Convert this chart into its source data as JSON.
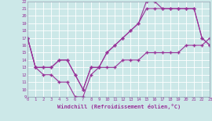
{
  "xlabel": "Windchill (Refroidissement éolien,°C)",
  "bg_color": "#cce8e8",
  "line_color": "#993399",
  "grid_color": "#aacccc",
  "xmin": 0,
  "xmax": 23,
  "ymin": 9,
  "ymax": 22,
  "line1_x": [
    0,
    1,
    2,
    3,
    4,
    5,
    6,
    7,
    8,
    9,
    10,
    11,
    12,
    13,
    14,
    15,
    16,
    17,
    18,
    19,
    20,
    21,
    22,
    23
  ],
  "line1_y": [
    17,
    13,
    13,
    13,
    14,
    14,
    12,
    10,
    13,
    13,
    15,
    16,
    17,
    18,
    19,
    22,
    22,
    21,
    21,
    21,
    21,
    21,
    17,
    16
  ],
  "line2_x": [
    0,
    1,
    2,
    3,
    4,
    5,
    6,
    7,
    8,
    9,
    10,
    11,
    12,
    13,
    14,
    15,
    16,
    17,
    18,
    19,
    20,
    21,
    22,
    23
  ],
  "line2_y": [
    17,
    13,
    13,
    13,
    14,
    14,
    12,
    10,
    13,
    13,
    15,
    16,
    17,
    18,
    19,
    21,
    21,
    21,
    21,
    21,
    21,
    21,
    17,
    16
  ],
  "line3_x": [
    0,
    1,
    2,
    3,
    4,
    5,
    6,
    7,
    8,
    9,
    10,
    11,
    12,
    13,
    14,
    15,
    16,
    17,
    18,
    19,
    20,
    21,
    22,
    23
  ],
  "line3_y": [
    17,
    13,
    12,
    12,
    11,
    11,
    9,
    9,
    12,
    13,
    13,
    13,
    14,
    14,
    14,
    15,
    15,
    15,
    15,
    15,
    16,
    16,
    16,
    17
  ]
}
